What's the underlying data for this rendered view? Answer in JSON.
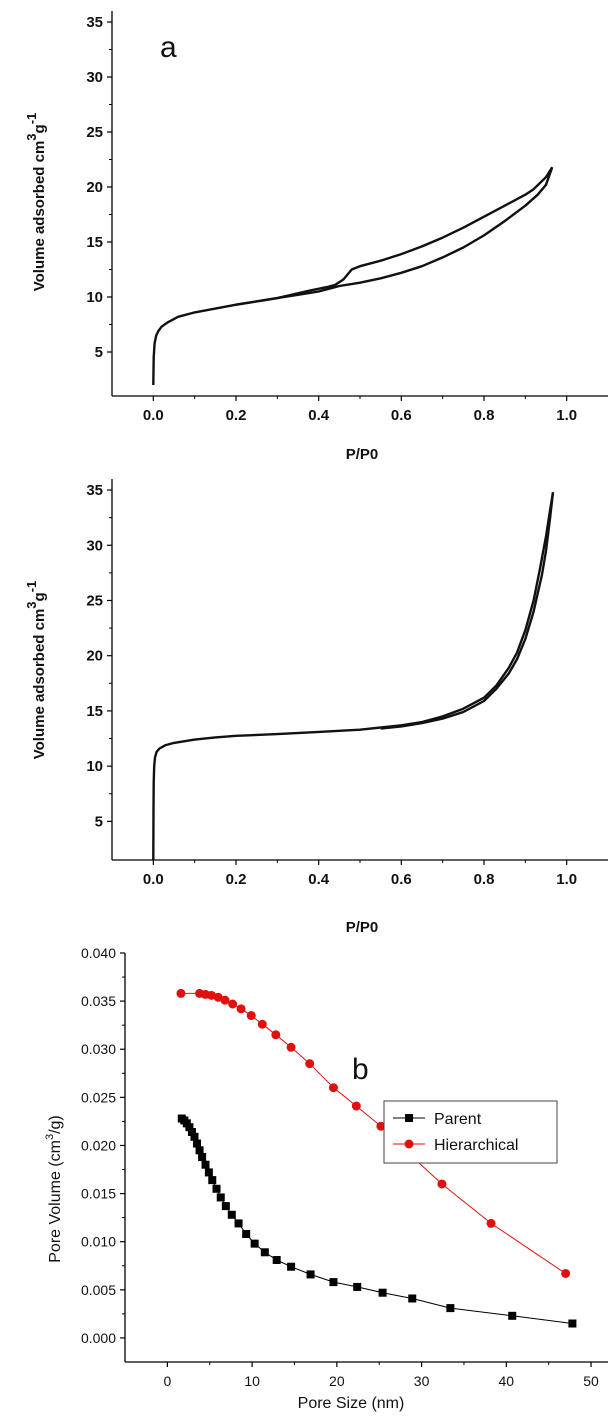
{
  "chart_data": [
    {
      "type": "line",
      "panel_label": "a",
      "xlabel": "P/P0",
      "ylabel_main": "Volume adsorbed cm",
      "ylabel_sup3": "3",
      "ylabel_g": "g",
      "ylabel_sup_minus1": "-1",
      "xlim": [
        -0.1,
        1.1
      ],
      "ylim": [
        1,
        36
      ],
      "xticks": [
        "0.0",
        "0.2",
        "0.4",
        "0.6",
        "0.8",
        "1.0"
      ],
      "yticks": [
        "5",
        "10",
        "15",
        "20",
        "25",
        "30",
        "35"
      ],
      "series": [
        {
          "x": [
            0.0,
            0.001,
            0.003,
            0.007,
            0.012,
            0.02,
            0.035,
            0.06,
            0.1,
            0.15,
            0.2,
            0.25,
            0.3,
            0.35,
            0.4,
            0.43,
            0.45,
            0.5,
            0.55,
            0.6,
            0.65,
            0.7,
            0.75,
            0.8,
            0.85,
            0.9,
            0.93,
            0.95,
            0.965
          ],
          "y": [
            2.0,
            4.5,
            5.8,
            6.5,
            6.9,
            7.3,
            7.7,
            8.2,
            8.6,
            8.95,
            9.3,
            9.6,
            9.9,
            10.2,
            10.5,
            10.8,
            11.0,
            11.3,
            11.7,
            12.2,
            12.8,
            13.6,
            14.5,
            15.6,
            16.9,
            18.3,
            19.3,
            20.2,
            21.8
          ]
        },
        {
          "x": [
            0.965,
            0.95,
            0.92,
            0.9,
            0.85,
            0.8,
            0.75,
            0.7,
            0.65,
            0.6,
            0.55,
            0.5,
            0.48,
            0.46,
            0.44,
            0.42,
            0.38,
            0.3,
            0.2
          ],
          "y": [
            21.8,
            20.9,
            19.8,
            19.3,
            18.3,
            17.3,
            16.3,
            15.4,
            14.6,
            13.9,
            13.3,
            12.8,
            12.5,
            11.6,
            11.1,
            10.9,
            10.6,
            9.9,
            9.3
          ]
        }
      ]
    },
    {
      "type": "line",
      "xlabel": "P/P0",
      "ylabel_main": "Volume adsorbed cm",
      "ylabel_sup3": "3",
      "ylabel_g": "g",
      "ylabel_sup_minus1": "-1",
      "xlim": [
        -0.1,
        1.1
      ],
      "ylim": [
        1.5,
        36
      ],
      "xticks": [
        "0.0",
        "0.2",
        "0.4",
        "0.6",
        "0.8",
        "1.0"
      ],
      "yticks": [
        "5",
        "10",
        "15",
        "20",
        "25",
        "30",
        "35"
      ],
      "series": [
        {
          "x": [
            0.0,
            0.0005,
            0.001,
            0.002,
            0.004,
            0.008,
            0.015,
            0.03,
            0.05,
            0.1,
            0.15,
            0.2,
            0.3,
            0.4,
            0.5,
            0.6,
            0.65,
            0.7,
            0.75,
            0.8,
            0.83,
            0.86,
            0.88,
            0.9,
            0.92,
            0.935,
            0.95,
            0.96,
            0.967
          ],
          "y": [
            1.5,
            6.0,
            8.5,
            10.0,
            10.8,
            11.3,
            11.6,
            11.9,
            12.1,
            12.4,
            12.6,
            12.75,
            12.9,
            13.1,
            13.3,
            13.7,
            14.0,
            14.5,
            15.2,
            16.2,
            17.3,
            18.9,
            20.3,
            22.3,
            25.0,
            27.8,
            30.8,
            33.2,
            34.8
          ]
        },
        {
          "x": [
            0.967,
            0.96,
            0.95,
            0.94,
            0.92,
            0.9,
            0.88,
            0.86,
            0.83,
            0.8,
            0.75,
            0.7,
            0.65,
            0.6,
            0.55
          ],
          "y": [
            34.8,
            32.5,
            29.5,
            27.3,
            24.0,
            21.5,
            19.7,
            18.4,
            17.0,
            15.9,
            14.9,
            14.3,
            13.9,
            13.6,
            13.4
          ]
        }
      ]
    },
    {
      "type": "line",
      "panel_label": "b",
      "xlabel": "Pore Size (nm)",
      "ylabel_main": "Pore Volume (cm",
      "ylabel_sup3": "3",
      "ylabel_end": "/g)",
      "xlim": [
        -5,
        52
      ],
      "ylim": [
        -0.0025,
        0.04
      ],
      "xticks": [
        "0",
        "10",
        "20",
        "30",
        "40",
        "50"
      ],
      "yticks": [
        "0.000",
        "0.005",
        "0.010",
        "0.015",
        "0.020",
        "0.025",
        "0.030",
        "0.035",
        "0.040"
      ],
      "legend_position": "top-right",
      "series": [
        {
          "name": "Parent",
          "color": "#000000",
          "marker": "square",
          "x": [
            1.7,
            2.0,
            2.3,
            2.6,
            2.9,
            3.2,
            3.5,
            3.8,
            4.1,
            4.5,
            4.9,
            5.3,
            5.8,
            6.3,
            6.9,
            7.6,
            8.4,
            9.3,
            10.3,
            11.5,
            12.9,
            14.6,
            16.9,
            19.6,
            22.4,
            25.4,
            28.9,
            33.4,
            40.7,
            47.8
          ],
          "y": [
            0.0228,
            0.0226,
            0.0223,
            0.0219,
            0.0214,
            0.0209,
            0.0202,
            0.0195,
            0.0188,
            0.018,
            0.0172,
            0.0164,
            0.0155,
            0.0146,
            0.0137,
            0.0128,
            0.0119,
            0.0108,
            0.0098,
            0.0089,
            0.0081,
            0.0074,
            0.0066,
            0.0058,
            0.0053,
            0.0047,
            0.0041,
            0.0031,
            0.0023,
            0.0015
          ]
        },
        {
          "name": "Hierarchical",
          "color": "#e01010",
          "marker": "circle",
          "x": [
            1.6,
            3.8,
            4.5,
            5.2,
            6.0,
            6.8,
            7.7,
            8.7,
            9.9,
            11.2,
            12.8,
            14.6,
            16.8,
            19.6,
            22.3,
            25.2,
            28.2,
            32.4,
            38.2,
            47.0
          ],
          "y": [
            0.0358,
            0.0358,
            0.0357,
            0.0356,
            0.0354,
            0.0351,
            0.0347,
            0.0342,
            0.0335,
            0.0326,
            0.0315,
            0.0302,
            0.0285,
            0.026,
            0.0241,
            0.022,
            0.0194,
            0.016,
            0.0119,
            0.0067
          ]
        }
      ]
    }
  ]
}
